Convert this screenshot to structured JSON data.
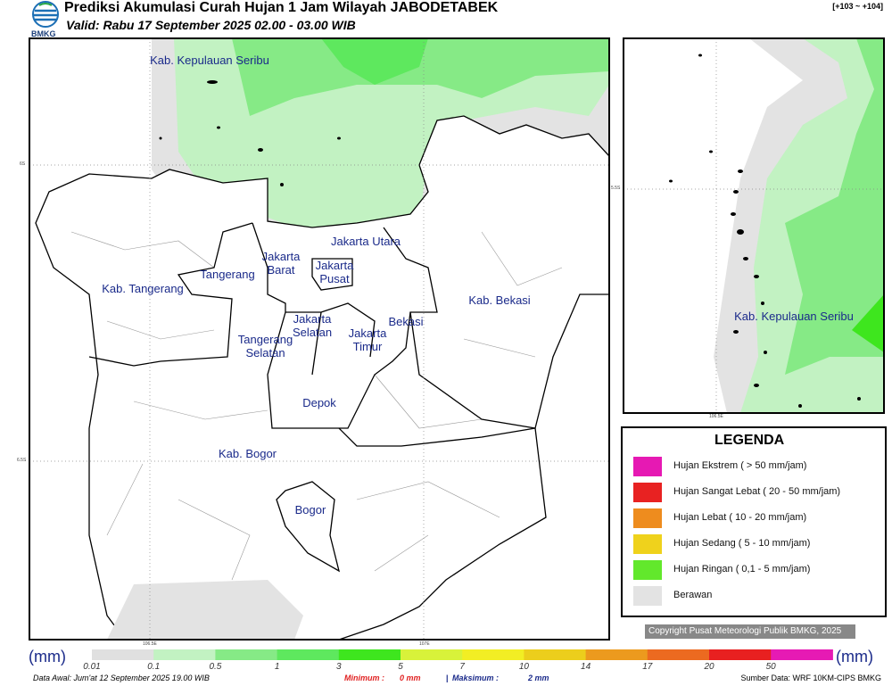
{
  "header": {
    "title": "Prediksi Akumulasi Curah Hujan 1 Jam Wilayah JABODETABEK",
    "subtitle": "Valid: Rabu 17 September 2025 02.00 - 03.00 WIB",
    "logo_text": "BMKG",
    "range": "[+103 ~ +104]"
  },
  "map": {
    "labels": [
      "Kab. Kepulauan Seribu",
      "Jakarta Utara",
      "Jakarta Barat",
      "Jakarta Pusat",
      "Tangerang",
      "Kab. Tangerang",
      "Jakarta Selatan",
      "Jakarta Timur",
      "Bekasi",
      "Kab. Bekasi",
      "Tangerang Selatan",
      "Depok",
      "Kab. Bogor",
      "Bogor"
    ],
    "graticule": [
      "6S",
      "6.5S",
      "106.5E",
      "107E"
    ]
  },
  "inset": {
    "label": "Kab. Kepulauan Seribu",
    "graticule": [
      "5.5S",
      "106.5E"
    ]
  },
  "legend": {
    "title": "LEGENDA",
    "items": [
      {
        "label": "Hujan Ekstrem ( > 50 mm/jam)",
        "color": "#e619b3"
      },
      {
        "label": "Hujan Sangat Lebat ( 20 - 50 mm/jam)",
        "color": "#e82222"
      },
      {
        "label": "Hujan Lebat ( 10 - 20 mm/jam)",
        "color": "#ee8c1e"
      },
      {
        "label": "Hujan Sedang ( 5 - 10 mm/jam)",
        "color": "#efd21c"
      },
      {
        "label": "Hujan Ringan ( 0,1 - 5 mm/jam)",
        "color": "#62e82c"
      },
      {
        "label": "Berawan",
        "color": "#e3e3e3"
      }
    ]
  },
  "copyright": "Copyright Pusat Meteorologi Publik BMKG, 2025",
  "colorbar": {
    "unit": "(mm)",
    "ticks": [
      "0.01",
      "0.1",
      "0.5",
      "1",
      "3",
      "5",
      "7",
      "10",
      "14",
      "17",
      "20",
      "50"
    ],
    "colors": [
      "#e0e0e0",
      "#c2f2c2",
      "#86ea86",
      "#5ee85e",
      "#3ee61e",
      "#d8f23a",
      "#f2ee24",
      "#ecce1c",
      "#ec9a1e",
      "#ec6a20",
      "#e82020",
      "#e61ab4"
    ]
  },
  "footer": {
    "source_run": "Data Awal: Jum'at 12 September 2025 19.00 WIB",
    "min_label": "Minimum :",
    "min_value": "0 mm",
    "separator": "|",
    "max_label": "Maksimum :",
    "max_value": "2 mm",
    "source": "Sumber Data: WRF 10KM-CIPS BMKG"
  }
}
